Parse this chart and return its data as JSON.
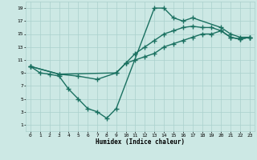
{
  "xlabel": "Humidex (Indice chaleur)",
  "xlim": [
    -0.5,
    23.5
  ],
  "ylim": [
    0,
    20
  ],
  "xticks": [
    0,
    1,
    2,
    3,
    4,
    5,
    6,
    7,
    8,
    9,
    10,
    11,
    12,
    13,
    14,
    15,
    16,
    17,
    18,
    19,
    20,
    21,
    22,
    23
  ],
  "yticks": [
    1,
    3,
    5,
    7,
    9,
    11,
    13,
    15,
    17,
    19
  ],
  "bg_color": "#cce8e4",
  "grid_color": "#aad0cc",
  "line_color": "#1a7060",
  "line_width": 1.0,
  "marker": "+",
  "marker_size": 4.0,
  "lines": [
    {
      "x": [
        0,
        1,
        2,
        3,
        4,
        5,
        6,
        7,
        8,
        9,
        13,
        14,
        15,
        16,
        17,
        20,
        21,
        22,
        23
      ],
      "y": [
        10,
        9,
        8.8,
        8.5,
        6.5,
        5.0,
        3.5,
        3.0,
        2.0,
        3.5,
        19,
        19,
        17.5,
        17,
        17.5,
        16,
        15,
        14.5,
        14.5
      ]
    },
    {
      "x": [
        0,
        3,
        9,
        10,
        11,
        12,
        13,
        14,
        15,
        16,
        17,
        18,
        19,
        20,
        21,
        22,
        23
      ],
      "y": [
        10,
        8.8,
        9,
        10.5,
        12,
        13,
        14,
        15,
        15.5,
        16,
        16.2,
        16,
        16,
        15.5,
        14.5,
        14.2,
        14.5
      ]
    },
    {
      "x": [
        0,
        3,
        5,
        7,
        9,
        10,
        11,
        12,
        13,
        14,
        15,
        16,
        17,
        18,
        19,
        20,
        21,
        22,
        23
      ],
      "y": [
        10,
        8.8,
        8.5,
        8.0,
        9,
        10.5,
        11,
        11.5,
        12,
        13,
        13.5,
        14,
        14.5,
        15,
        15,
        15.5,
        14.5,
        14.2,
        14.5
      ]
    }
  ]
}
